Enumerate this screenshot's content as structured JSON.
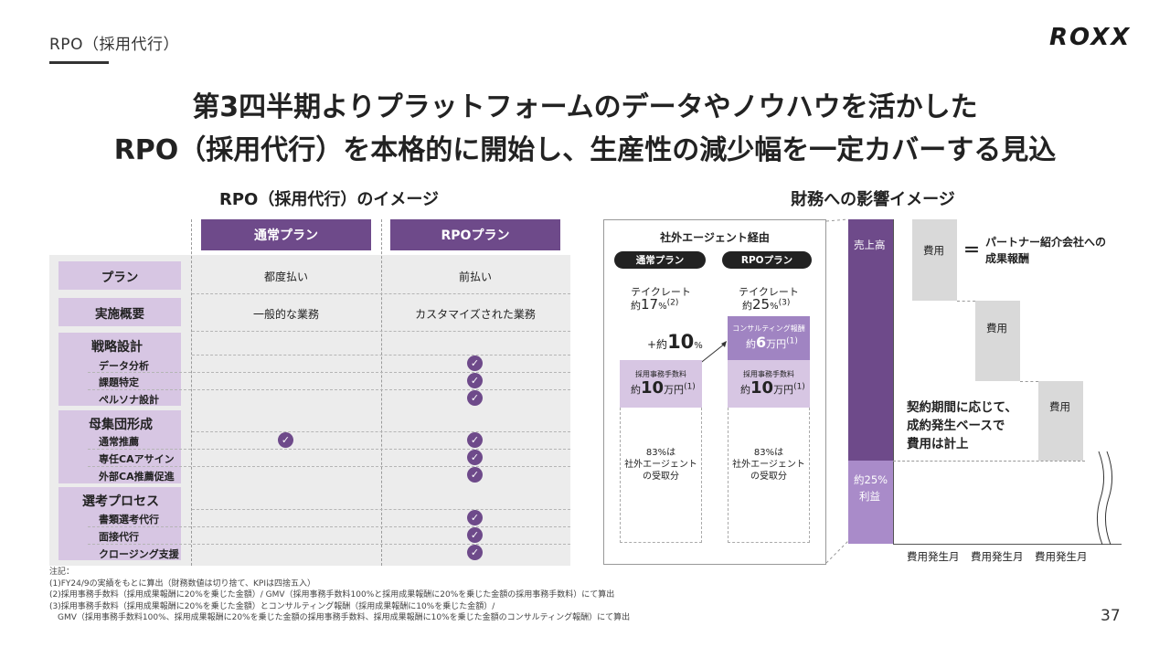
{
  "header": {
    "section": "RPO（採用代行）",
    "logo": "ROXX",
    "headline_line1": "第3四半期よりプラットフォームのデータやノウハウを活かした",
    "headline_line2": "RPO（採用代行）を本格的に開始し、生産性の減少幅を一定カバーする見込"
  },
  "left": {
    "title": "RPO（採用代行）のイメージ",
    "plans": [
      "通常プラン",
      "RPOプラン"
    ],
    "rows": [
      {
        "label": "プラン",
        "normal": "都度払い",
        "rpo": "前払い"
      },
      {
        "label": "実施概要",
        "normal": "一般的な業務",
        "rpo": "カスタマイズされた業務"
      }
    ],
    "groups": [
      {
        "title": "戦略設計",
        "items": [
          {
            "name": "データ分析",
            "normal": false,
            "rpo": true
          },
          {
            "name": "課題特定",
            "normal": false,
            "rpo": true
          },
          {
            "name": "ペルソナ設計",
            "normal": false,
            "rpo": true
          }
        ]
      },
      {
        "title": "母集団形成",
        "items": [
          {
            "name": "通常推薦",
            "normal": true,
            "rpo": true
          },
          {
            "name": "専任CAアサイン",
            "normal": false,
            "rpo": true
          },
          {
            "name": "外部CA推薦促進",
            "normal": false,
            "rpo": true
          }
        ]
      },
      {
        "title": "選考プロセス",
        "items": [
          {
            "name": "書類選考代行",
            "normal": false,
            "rpo": true
          },
          {
            "name": "面接代行",
            "normal": false,
            "rpo": true
          },
          {
            "name": "クロージング支援",
            "normal": false,
            "rpo": true
          }
        ]
      }
    ],
    "check_glyph": "✓"
  },
  "middle": {
    "title": "社外エージェント経由",
    "pill_normal": "通常プラン",
    "pill_rpo": "RPOプラン",
    "tel": "テイクレート",
    "approx": "約",
    "rate_normal": "17",
    "rate_normal_note": "(2)",
    "rate_rpo": "25",
    "rate_rpo_note": "(3)",
    "percent": "%",
    "increase_prefix": "+約",
    "increase_value": "10",
    "consult_label": "コンサルティング報酬",
    "consult_value": "6",
    "consult_note": "(1)",
    "man_yen": "万円",
    "fee_label": "採用事務手数料",
    "fee_value": "10",
    "fee_note": "(1)",
    "share_text_1": "83%は",
    "share_text_2": "社外エージェント",
    "share_text_3": "の受取分"
  },
  "right": {
    "title": "財務への影響イメージ",
    "sales": "売上高",
    "profit_1": "約25%",
    "profit_2": "利益",
    "cost": "費用",
    "equals": "＝",
    "partner_1": "パートナー紹介会社への",
    "partner_2": "成果報酬",
    "note_1": "契約期間に応じて、",
    "note_2": "成約発生ベースで",
    "note_3": "費用は計上",
    "month": "費用発生月"
  },
  "notes": {
    "title": "注記：",
    "n1": "(1)FY24/9の実績をもとに算出（財務数値は切り捨て、KPIは四捨五入）",
    "n2": "(2)採用事務手数料（採用成果報酬に20%を乗じた金額）/ GMV（採用事務手数料100%と採用成果報酬に20%を乗じた金額の採用事務手数料）にて算出",
    "n3": "(3)採用事務手数料（採用成果報酬に20%を乗じた金額）とコンサルティング報酬（採用成果報酬に10%を乗じた金額）/",
    "n4": "　GMV（採用事務手数料100%、採用成果報酬に20%を乗じた金額の採用事務手数料、採用成果報酬に10%を乗じた金額のコンサルティング報酬）にて算出"
  },
  "page_number": "37",
  "colors": {
    "accent": "#6e4a8a",
    "lavender": "#d7c6e3",
    "mid_purple": "#a084c2",
    "grey": "#d9d9d9"
  }
}
